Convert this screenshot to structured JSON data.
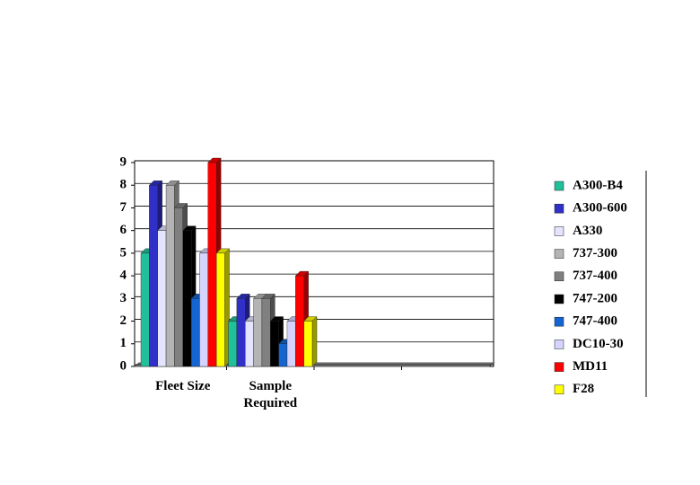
{
  "chart_data": {
    "type": "bar",
    "categories": [
      "Fleet Size",
      "Sample Required",
      null,
      null
    ],
    "series": [
      {
        "name": "A300-B4",
        "color": "#20c09a",
        "values": [
          5,
          2,
          null,
          null
        ]
      },
      {
        "name": "A300-600",
        "color": "#3030c8",
        "values": [
          8,
          3,
          null,
          null
        ]
      },
      {
        "name": "A330",
        "color": "#e4e4ff",
        "values": [
          6,
          2,
          null,
          null
        ]
      },
      {
        "name": "737-300",
        "color": "#b4b4b4",
        "values": [
          8,
          3,
          null,
          null
        ]
      },
      {
        "name": "737-400",
        "color": "#808080",
        "values": [
          7,
          3,
          null,
          null
        ]
      },
      {
        "name": "747-200",
        "color": "#000000",
        "values": [
          6,
          2,
          null,
          null
        ]
      },
      {
        "name": "747-400",
        "color": "#1464d2",
        "values": [
          3,
          1,
          null,
          null
        ]
      },
      {
        "name": "DC10-30",
        "color": "#d4d4ff",
        "values": [
          5,
          2,
          null,
          null
        ]
      },
      {
        "name": "MD11",
        "color": "#ff0000",
        "values": [
          9,
          4,
          null,
          null
        ]
      },
      {
        "name": "F28",
        "color": "#ffff00",
        "values": [
          5,
          2,
          null,
          null
        ]
      }
    ],
    "ylim": [
      0,
      9
    ],
    "yticks": [
      0,
      1,
      2,
      3,
      4,
      5,
      6,
      7,
      8,
      9
    ],
    "grid": true,
    "legend": "right"
  }
}
